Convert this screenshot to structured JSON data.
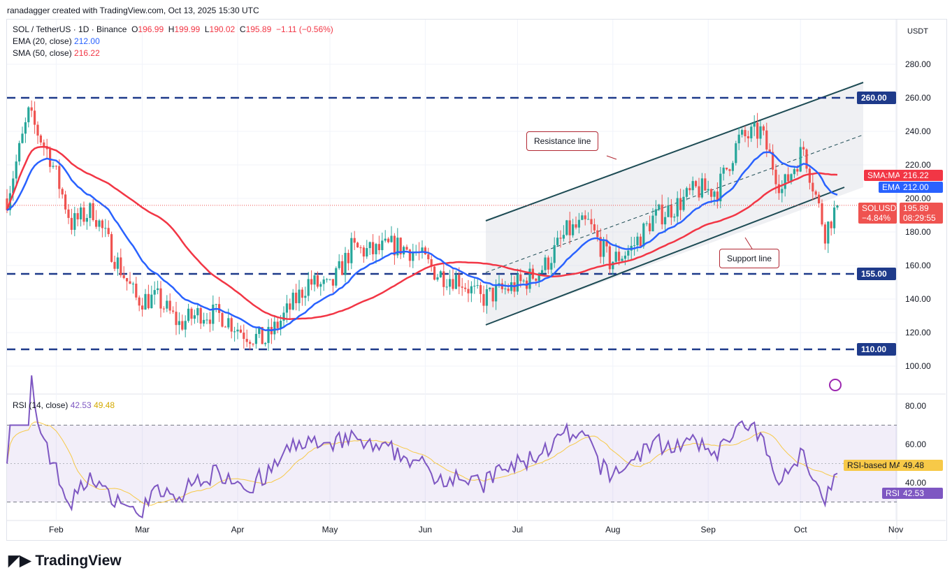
{
  "credit": "ranadagger created with TradingView.com, Oct 13, 2025 15:30 UTC",
  "legend": {
    "symbol": "SOL / TetherUS · 1D · Binance",
    "o_label": "O",
    "o": "196.99",
    "h_label": "H",
    "h": "199.99",
    "l_label": "L",
    "l": "190.02",
    "c_label": "C",
    "c": "195.89",
    "change": "−1.11 (−0.56%)",
    "ema_label": "EMA (20, close)",
    "ema": "212.00",
    "sma_label": "SMA (50, close)",
    "sma": "216.22",
    "rsi_label": "RSI (14, close)",
    "rsi": "42.53",
    "rsi_ma": "49.48"
  },
  "price_axis": {
    "currency": "USDT",
    "ticks": [
      "100.00",
      "120.00",
      "140.00",
      "160.00",
      "180.00",
      "200.00",
      "220.00",
      "240.00",
      "260.00",
      "280.00"
    ]
  },
  "rsi_axis": {
    "ticks": [
      "40.00",
      "60.00",
      "80.00"
    ]
  },
  "time_axis": [
    "Feb",
    "Mar",
    "Apr",
    "May",
    "Jun",
    "Jul",
    "Aug",
    "Sep",
    "Oct",
    "Nov"
  ],
  "tags": {
    "sma": {
      "label": "SMA:MA",
      "value": "216.22"
    },
    "ema": {
      "label": "EMA",
      "value": "212.00"
    },
    "price": {
      "label": "SOLUSDT",
      "value": "195.89",
      "pct": "−4.84%",
      "countdown": "08:29:55"
    },
    "rsi_ma": {
      "label": "RSI-based MA",
      "value": "49.48"
    },
    "rsi": {
      "label": "RSI",
      "value": "42.53"
    }
  },
  "levels": [
    {
      "value": 260,
      "label": "260.00"
    },
    {
      "value": 155,
      "label": "155.00"
    },
    {
      "value": 110,
      "label": "110.00"
    }
  ],
  "annotations": {
    "resistance": "Resistance line",
    "support": "Support line"
  },
  "colors": {
    "up": "#26a69a",
    "down": "#ef5350",
    "ema": "#2962ff",
    "sma": "#f23645",
    "rsi": "#7e57c2",
    "rsi_ma": "#f7c948",
    "level": "#1e3a8a",
    "channel": "#1d4b54"
  },
  "logo": "TradingView",
  "chart_data": {
    "type": "candlestick",
    "title": "SOL / TetherUS · 1D · Binance",
    "ylim": [
      95,
      290
    ],
    "note_series": "approximate weekly closes",
    "dates": [
      "2025-01-16",
      "2025-01-23",
      "2025-01-30",
      "2025-02-06",
      "2025-02-13",
      "2025-02-20",
      "2025-02-27",
      "2025-03-06",
      "2025-03-13",
      "2025-03-20",
      "2025-03-27",
      "2025-04-03",
      "2025-04-10",
      "2025-04-17",
      "2025-04-24",
      "2025-05-01",
      "2025-05-08",
      "2025-05-15",
      "2025-05-22",
      "2025-05-29",
      "2025-06-05",
      "2025-06-12",
      "2025-06-19",
      "2025-06-26",
      "2025-07-03",
      "2025-07-10",
      "2025-07-17",
      "2025-07-24",
      "2025-07-31",
      "2025-08-07",
      "2025-08-14",
      "2025-08-21",
      "2025-08-28",
      "2025-09-04",
      "2025-09-11",
      "2025-09-18",
      "2025-09-25",
      "2025-10-02",
      "2025-10-09",
      "2025-10-13"
    ],
    "closes": [
      200,
      250,
      225,
      185,
      193,
      165,
      140,
      140,
      125,
      132,
      130,
      120,
      115,
      132,
      150,
      146,
      170,
      168,
      172,
      168,
      155,
      152,
      140,
      145,
      150,
      160,
      180,
      185,
      162,
      170,
      188,
      195,
      205,
      205,
      235,
      240,
      205,
      230,
      180,
      196
    ],
    "rsi_range": [
      25,
      85
    ],
    "rsi_levels": [
      30,
      70
    ]
  }
}
